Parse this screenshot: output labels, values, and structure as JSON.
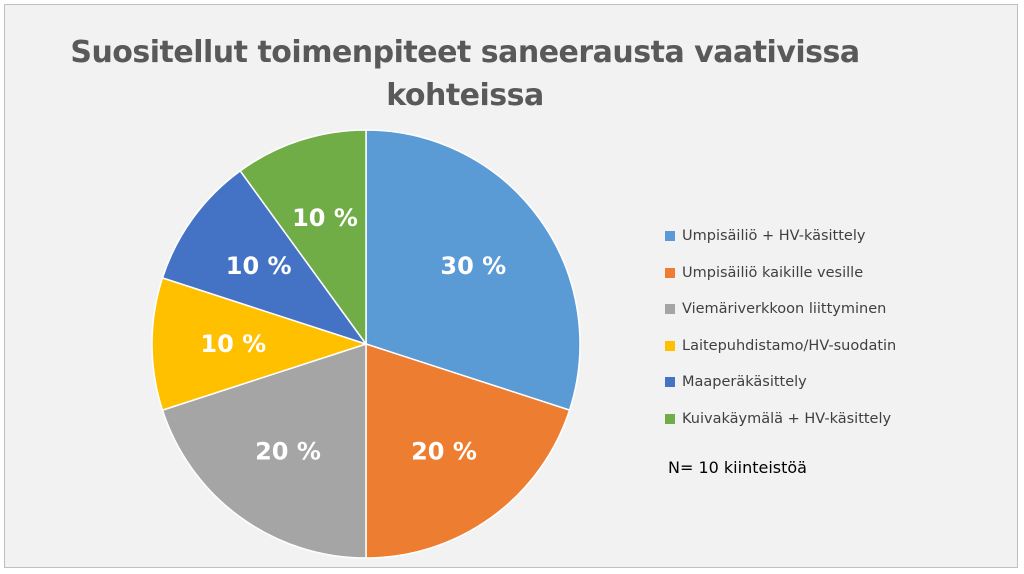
{
  "chart_data": {
    "type": "pie",
    "title": "Suositellut toimenpiteet saneerausta vaativissa kohteissa",
    "categories": [
      "Umpisäiliö + HV-käsittely",
      "Umpisäiliö kaikille vesille",
      "Viemäriverkkoon liittyminen",
      "Laitepuhdistamo/HV-suodatin",
      "Maaperäkäsittely",
      "Kuivakäymälä + HV-käsittely"
    ],
    "values": [
      30,
      20,
      20,
      10,
      10,
      10
    ],
    "data_labels": [
      "30 %",
      "20 %",
      "20 %",
      "10 %",
      "10 %",
      "10 %"
    ],
    "colors": [
      "#5b9bd5",
      "#ed7d31",
      "#a5a5a5",
      "#ffc000",
      "#4472c4",
      "#70ad47"
    ],
    "legend_position": "right",
    "note": "N= 10 kiinteistöä"
  }
}
